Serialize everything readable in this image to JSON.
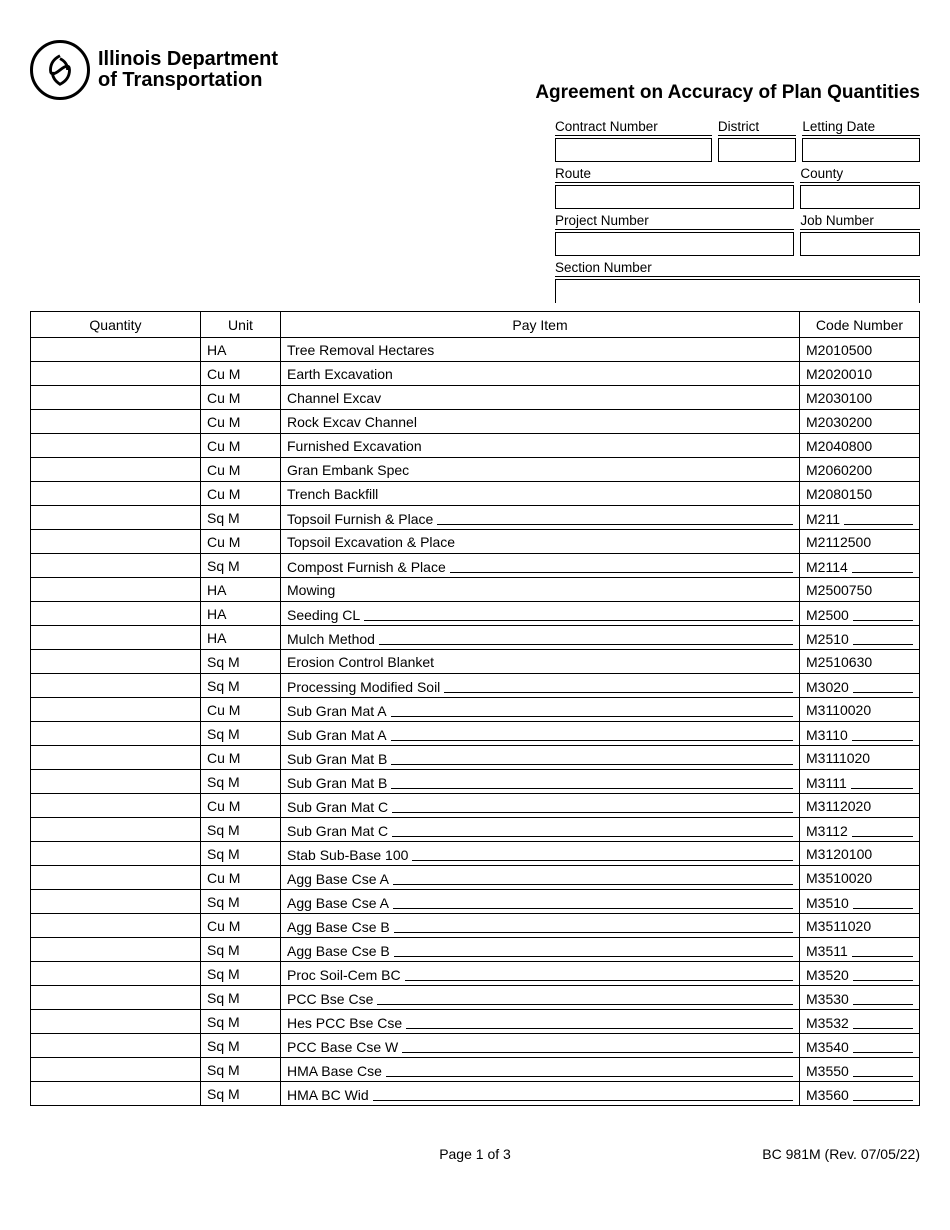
{
  "header": {
    "logo_line1": "Illinois Department",
    "logo_line2": "of Transportation",
    "title": "Agreement on Accuracy of Plan Quantities"
  },
  "meta": {
    "contract_number_label": "Contract Number",
    "district_label": "District",
    "letting_date_label": "Letting Date",
    "route_label": "Route",
    "county_label": "County",
    "project_number_label": "Project Number",
    "job_number_label": "Job Number",
    "section_number_label": "Section Number"
  },
  "table": {
    "headers": {
      "quantity": "Quantity",
      "unit": "Unit",
      "pay_item": "Pay Item",
      "code_number": "Code Number"
    },
    "rows": [
      {
        "quantity": "",
        "unit": "HA",
        "pay_item": "Tree Removal Hectares",
        "pay_item_has_line": false,
        "code": "M2010500",
        "code_has_line": false
      },
      {
        "quantity": "",
        "unit": "Cu M",
        "pay_item": "Earth Excavation",
        "pay_item_has_line": false,
        "code": "M2020010",
        "code_has_line": false
      },
      {
        "quantity": "",
        "unit": "Cu M",
        "pay_item": "Channel Excav",
        "pay_item_has_line": false,
        "code": "M2030100",
        "code_has_line": false
      },
      {
        "quantity": "",
        "unit": "Cu M",
        "pay_item": "Rock Excav Channel",
        "pay_item_has_line": false,
        "code": "M2030200",
        "code_has_line": false
      },
      {
        "quantity": "",
        "unit": "Cu M",
        "pay_item": "Furnished Excavation",
        "pay_item_has_line": false,
        "code": "M2040800",
        "code_has_line": false
      },
      {
        "quantity": "",
        "unit": "Cu M",
        "pay_item": "Gran Embank Spec",
        "pay_item_has_line": false,
        "code": "M2060200",
        "code_has_line": false
      },
      {
        "quantity": "",
        "unit": "Cu M",
        "pay_item": "Trench Backfill",
        "pay_item_has_line": false,
        "code": "M2080150",
        "code_has_line": false
      },
      {
        "quantity": "",
        "unit": "Sq M",
        "pay_item": "Topsoil Furnish & Place",
        "pay_item_has_line": true,
        "code": "M211",
        "code_has_line": true
      },
      {
        "quantity": "",
        "unit": "Cu M",
        "pay_item": "Topsoil Excavation & Place",
        "pay_item_has_line": false,
        "code": "M2112500",
        "code_has_line": false
      },
      {
        "quantity": "",
        "unit": "Sq M",
        "pay_item": "Compost Furnish & Place",
        "pay_item_has_line": true,
        "code": "M2114",
        "code_has_line": true
      },
      {
        "quantity": "",
        "unit": "HA",
        "pay_item": "Mowing",
        "pay_item_has_line": false,
        "code": "M2500750",
        "code_has_line": false
      },
      {
        "quantity": "",
        "unit": "HA",
        "pay_item": "Seeding CL",
        "pay_item_has_line": true,
        "code": "M2500",
        "code_has_line": true
      },
      {
        "quantity": "",
        "unit": "HA",
        "pay_item": "Mulch Method",
        "pay_item_has_line": true,
        "code": "M2510",
        "code_has_line": true
      },
      {
        "quantity": "",
        "unit": "Sq M",
        "pay_item": "Erosion Control Blanket",
        "pay_item_has_line": false,
        "code": "M2510630",
        "code_has_line": false
      },
      {
        "quantity": "",
        "unit": "Sq M",
        "pay_item": "Processing Modified Soil",
        "pay_item_has_line": true,
        "code": "M3020",
        "code_has_line": true
      },
      {
        "quantity": "",
        "unit": "Cu M",
        "pay_item": "Sub Gran Mat A",
        "pay_item_has_line": true,
        "code": "M3110020",
        "code_has_line": false
      },
      {
        "quantity": "",
        "unit": "Sq M",
        "pay_item": "Sub Gran Mat A",
        "pay_item_has_line": true,
        "code": "M3110",
        "code_has_line": true
      },
      {
        "quantity": "",
        "unit": "Cu M",
        "pay_item": "Sub Gran Mat B",
        "pay_item_has_line": true,
        "code": "M3111020",
        "code_has_line": false
      },
      {
        "quantity": "",
        "unit": "Sq M",
        "pay_item": "Sub Gran Mat B",
        "pay_item_has_line": true,
        "code": "M3111",
        "code_has_line": true
      },
      {
        "quantity": "",
        "unit": "Cu M",
        "pay_item": "Sub Gran Mat C",
        "pay_item_has_line": true,
        "code": "M3112020",
        "code_has_line": false
      },
      {
        "quantity": "",
        "unit": "Sq M",
        "pay_item": "Sub Gran Mat C",
        "pay_item_has_line": true,
        "code": "M3112",
        "code_has_line": true
      },
      {
        "quantity": "",
        "unit": "Sq M",
        "pay_item": "Stab Sub-Base 100",
        "pay_item_has_line": true,
        "code": "M3120100",
        "code_has_line": false
      },
      {
        "quantity": "",
        "unit": "Cu M",
        "pay_item": "Agg Base Cse A",
        "pay_item_has_line": true,
        "code": "M3510020",
        "code_has_line": false
      },
      {
        "quantity": "",
        "unit": "Sq M",
        "pay_item": "Agg Base Cse A",
        "pay_item_has_line": true,
        "code": "M3510",
        "code_has_line": true
      },
      {
        "quantity": "",
        "unit": "Cu M",
        "pay_item": "Agg Base Cse B",
        "pay_item_has_line": true,
        "code": "M3511020",
        "code_has_line": false
      },
      {
        "quantity": "",
        "unit": "Sq M",
        "pay_item": "Agg Base Cse B",
        "pay_item_has_line": true,
        "code": "M3511",
        "code_has_line": true
      },
      {
        "quantity": "",
        "unit": "Sq M",
        "pay_item": "Proc Soil-Cem BC",
        "pay_item_has_line": true,
        "code": "M3520",
        "code_has_line": true
      },
      {
        "quantity": "",
        "unit": "Sq M",
        "pay_item": "PCC Bse Cse",
        "pay_item_has_line": true,
        "code": "M3530",
        "code_has_line": true
      },
      {
        "quantity": "",
        "unit": "Sq M",
        "pay_item": "Hes PCC Bse Cse",
        "pay_item_has_line": true,
        "code": "M3532",
        "code_has_line": true
      },
      {
        "quantity": "",
        "unit": "Sq M",
        "pay_item": "PCC Base Cse W",
        "pay_item_has_line": true,
        "code": "M3540",
        "code_has_line": true
      },
      {
        "quantity": "",
        "unit": "Sq M",
        "pay_item": "HMA Base Cse",
        "pay_item_has_line": true,
        "code": "M3550",
        "code_has_line": true
      },
      {
        "quantity": "",
        "unit": "Sq M",
        "pay_item": "HMA BC Wid",
        "pay_item_has_line": true,
        "code": "M3560",
        "code_has_line": true
      }
    ]
  },
  "footer": {
    "page": "Page 1 of 3",
    "form_id": "BC 981M (Rev. 07/05/22)"
  }
}
